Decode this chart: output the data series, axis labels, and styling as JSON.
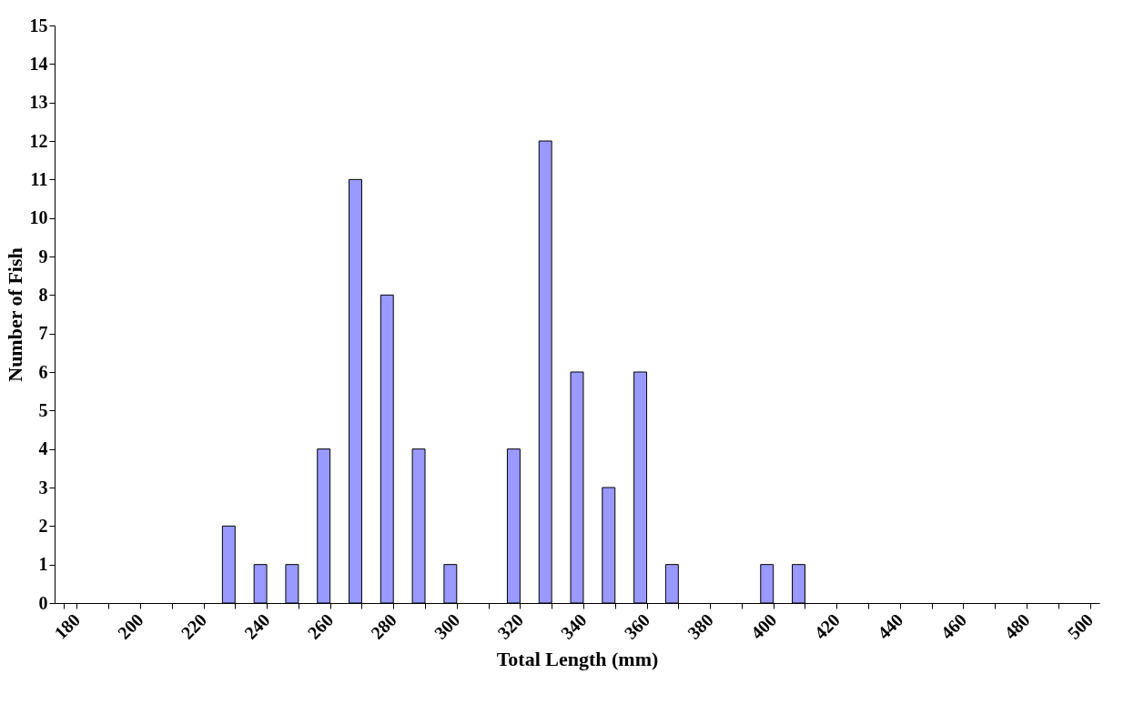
{
  "chart_data": {
    "type": "bar",
    "xlabel": "Total Length (mm)",
    "ylabel": "Number of Fish",
    "categories": [
      "180",
      null,
      "200",
      null,
      "220",
      null,
      "240",
      null,
      "260",
      null,
      "280",
      null,
      "300",
      null,
      "320",
      null,
      "340",
      null,
      "360",
      null,
      "380",
      null,
      "400",
      null,
      "420",
      null,
      "440",
      null,
      "460",
      null,
      "480",
      null,
      "500"
    ],
    "values": [
      0,
      0,
      0,
      0,
      0,
      2,
      1,
      1,
      4,
      11,
      8,
      4,
      1,
      0,
      4,
      12,
      6,
      3,
      6,
      1,
      0,
      0,
      1,
      1,
      0,
      0,
      0,
      0,
      0,
      0,
      0,
      0,
      0
    ],
    "color": "#9999ff",
    "ylim": [
      0,
      15
    ],
    "yticks": [
      0,
      1,
      2,
      3,
      4,
      5,
      6,
      7,
      8,
      9,
      10,
      11,
      12,
      13,
      14,
      15
    ],
    "grid": false
  }
}
